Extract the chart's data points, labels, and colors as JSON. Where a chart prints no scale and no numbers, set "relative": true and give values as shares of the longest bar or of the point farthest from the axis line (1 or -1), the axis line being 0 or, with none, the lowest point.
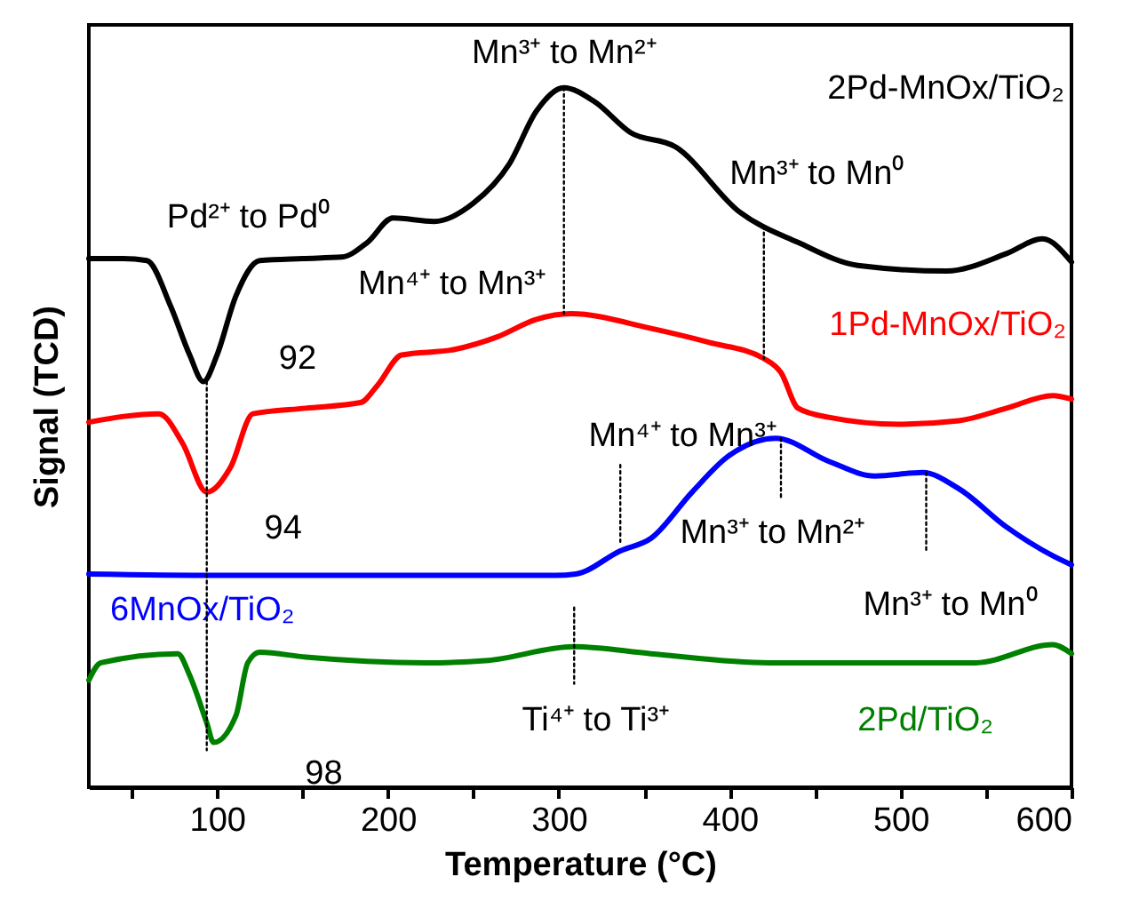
{
  "chart_data": {
    "type": "line",
    "relative": true,
    "xlabel": "Temperature (°C)",
    "ylabel": "Signal (TCD)",
    "xlim": [
      25,
      600
    ],
    "xticks": [
      {
        "value": 50,
        "label": null
      },
      100,
      {
        "value": 150,
        "label": null
      },
      200,
      {
        "value": 250,
        "label": null
      },
      300,
      {
        "value": 350,
        "label": null
      },
      400,
      {
        "value": 450,
        "label": null
      },
      500,
      {
        "value": 550,
        "label": null
      },
      600
    ],
    "series": [
      {
        "name": "2Pd-MnOx/TiO₂",
        "color": "#000000",
        "x": [
          25,
          45,
          59,
          73,
          84,
          92,
          100,
          111,
          125,
          150,
          173,
          188,
          203,
          227,
          250,
          271,
          287,
          303,
          321,
          342,
          368,
          406,
          440,
          475,
          527,
          562,
          583,
          600
        ],
        "values": [
          0.756,
          0.756,
          0.753,
          0.687,
          0.618,
          0.58,
          0.618,
          0.702,
          0.753,
          0.756,
          0.758,
          0.779,
          0.814,
          0.809,
          0.835,
          0.891,
          0.967,
          1.0,
          0.98,
          0.936,
          0.916,
          0.822,
          0.779,
          0.746,
          0.738,
          0.763,
          0.784,
          0.751
        ]
      },
      {
        "name": "1Pd-MnOx/TiO₂",
        "color": "#ff0000",
        "x": [
          25,
          66,
          80,
          94,
          108,
          121,
          152,
          184,
          194,
          208,
          239,
          264,
          287,
          307,
          354,
          388,
          420,
          430,
          440,
          458,
          499,
          534,
          562,
          589,
          600
        ],
        "values": [
          0.522,
          0.534,
          0.491,
          0.422,
          0.458,
          0.534,
          0.542,
          0.55,
          0.575,
          0.618,
          0.626,
          0.644,
          0.669,
          0.677,
          0.656,
          0.636,
          0.613,
          0.593,
          0.542,
          0.529,
          0.519,
          0.524,
          0.542,
          0.56,
          0.555
        ]
      },
      {
        "name": "6MnOx/TiO₂",
        "color": "#0000ff",
        "x": [
          25,
          100,
          200,
          298,
          310,
          336,
          354,
          378,
          399,
          427,
          458,
          485,
          513,
          534,
          562,
          589,
          600
        ],
        "values": [
          0.305,
          0.303,
          0.303,
          0.303,
          0.305,
          0.338,
          0.356,
          0.422,
          0.473,
          0.499,
          0.466,
          0.445,
          0.45,
          0.427,
          0.372,
          0.331,
          0.318
        ]
      },
      {
        "name": "2Pd/TiO₂",
        "color": "#008000",
        "x": [
          25,
          32,
          77,
          84,
          94,
          98,
          111,
          118,
          125,
          152,
          222,
          257,
          309,
          354,
          423,
          492,
          544,
          589,
          600
        ],
        "values": [
          0.153,
          0.178,
          0.191,
          0.16,
          0.092,
          0.064,
          0.102,
          0.178,
          0.193,
          0.186,
          0.178,
          0.181,
          0.201,
          0.191,
          0.178,
          0.178,
          0.178,
          0.204,
          0.191
        ]
      },
      {
        "type": "line",
        "line_style": "dotted",
        "color": "#000000",
        "x": [
          303,
          303
        ],
        "values": [
          1.0,
          0.677
        ]
      },
      {
        "type": "line",
        "line_style": "dotted",
        "color": "#000000",
        "x": [
          420,
          420
        ],
        "values": [
          0.802,
          0.613
        ]
      },
      {
        "type": "line",
        "line_style": "dotted",
        "color": "#000000",
        "x": [
          94,
          94
        ],
        "values": [
          0.58,
          0.053
        ]
      },
      {
        "type": "line",
        "line_style": "dotted",
        "color": "#000000",
        "x": [
          336,
          336
        ],
        "values": [
          0.461,
          0.351
        ]
      },
      {
        "type": "line",
        "line_style": "dotted",
        "color": "#000000",
        "x": [
          430,
          430
        ],
        "values": [
          0.499,
          0.415
        ]
      },
      {
        "type": "line",
        "line_style": "dotted",
        "color": "#000000",
        "x": [
          515,
          515
        ],
        "values": [
          0.45,
          0.338
        ]
      },
      {
        "type": "line",
        "line_style": "dotted",
        "color": "#000000",
        "x": [
          309,
          309
        ],
        "values": [
          0.257,
          0.148
        ]
      }
    ],
    "annotations": [
      "Pd²⁺ to Pd⁰",
      {
        "text": "92",
        "x": 92,
        "y": 0.58
      },
      {
        "text": "Mn³⁺ to  Mn²⁺",
        "x": 303,
        "y": 1.0
      },
      {
        "text": "Mn⁴⁺ to  Mn³⁺",
        "x": 303,
        "y": 0.677
      },
      {
        "text": "Mn³⁺ to  Mn⁰",
        "x": 420,
        "y": 0.802
      },
      {
        "text": "94",
        "x": 94,
        "y": 0.422
      },
      {
        "text": "Mn⁴⁺ to  Mn³⁺",
        "x": 336,
        "y": 0.338
      },
      {
        "text": "Mn³⁺ to  Mn²⁺",
        "x": 427,
        "y": 0.499
      },
      "Mn³⁺ to  Mn⁰",
      {
        "text": "Ti⁴⁺ to  Ti³⁺",
        "x": 309,
        "y": 0.201
      },
      {
        "text": "98",
        "x": 98,
        "y": 0.064
      }
    ]
  }
}
